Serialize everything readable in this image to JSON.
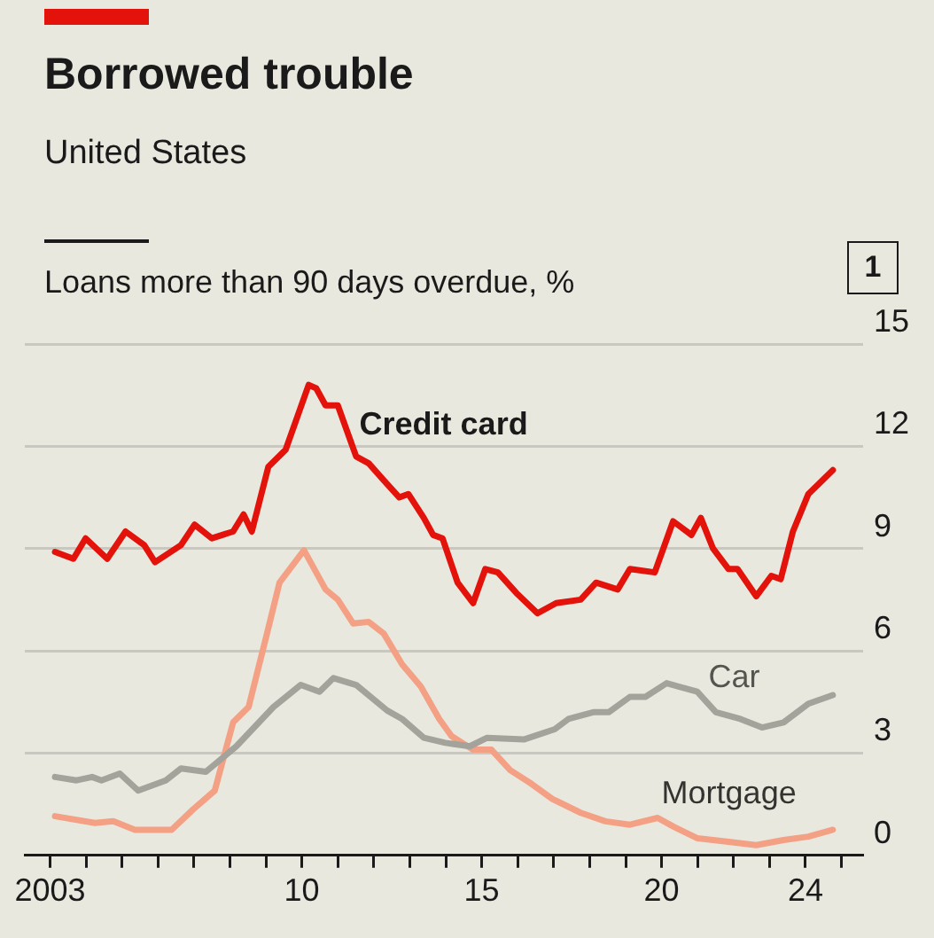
{
  "chart_data": {
    "type": "line",
    "title": "Borrowed trouble",
    "subtitle": "United States",
    "ylabel": "Loans more than 90 days overdue, %",
    "annotations": [
      "1"
    ],
    "xlim": [
      2002.3,
      2025.6
    ],
    "xticks": [
      {
        "value": 2003,
        "label": "2003"
      },
      {
        "value": 2004,
        "label": null
      },
      {
        "value": 2005,
        "label": null
      },
      {
        "value": 2006,
        "label": null
      },
      {
        "value": 2007,
        "label": null
      },
      {
        "value": 2008,
        "label": null
      },
      {
        "value": 2009,
        "label": null
      },
      {
        "value": 2010,
        "label": "10"
      },
      {
        "value": 2011,
        "label": null
      },
      {
        "value": 2012,
        "label": null
      },
      {
        "value": 2013,
        "label": null
      },
      {
        "value": 2014,
        "label": null
      },
      {
        "value": 2015,
        "label": "15"
      },
      {
        "value": 2016,
        "label": null
      },
      {
        "value": 2017,
        "label": null
      },
      {
        "value": 2018,
        "label": null
      },
      {
        "value": 2019,
        "label": null
      },
      {
        "value": 2020,
        "label": "20"
      },
      {
        "value": 2021,
        "label": null
      },
      {
        "value": 2022,
        "label": null
      },
      {
        "value": 2023,
        "label": null
      },
      {
        "value": 2024,
        "label": "24"
      },
      {
        "value": 2025,
        "label": null
      }
    ],
    "ylim": [
      0,
      15
    ],
    "yticks": [
      0,
      3,
      6,
      9,
      12,
      15
    ],
    "grid": "y",
    "legend": false,
    "marker": "none",
    "line_style": "solid",
    "series": [
      {
        "name": "Credit card",
        "color": "#e3120b",
        "x": [
          2003.14,
          2003.65,
          2003.99,
          2004.59,
          2005.1,
          2005.62,
          2005.92,
          2006.64,
          2007.02,
          2007.5,
          2008.09,
          2008.38,
          2008.61,
          2009.07,
          2009.55,
          2010.19,
          2010.4,
          2010.66,
          2011.0,
          2011.51,
          2011.86,
          2012.28,
          2012.71,
          2012.96,
          2013.39,
          2013.65,
          2013.91,
          2014.33,
          2014.76,
          2015.1,
          2015.45,
          2015.96,
          2016.55,
          2017.07,
          2017.75,
          2018.18,
          2018.78,
          2019.12,
          2019.81,
          2020.32,
          2020.83,
          2021.09,
          2021.43,
          2021.86,
          2022.11,
          2022.63,
          2023.05,
          2023.31,
          2023.65,
          2024.08,
          2024.76
        ],
        "values": [
          8.9,
          8.7,
          9.3,
          8.7,
          9.5,
          9.1,
          8.6,
          9.1,
          9.7,
          9.3,
          9.5,
          10.0,
          9.5,
          11.4,
          11.9,
          13.8,
          13.7,
          13.2,
          13.2,
          11.7,
          11.5,
          11.0,
          10.5,
          10.6,
          9.9,
          9.4,
          9.3,
          8.0,
          7.4,
          8.4,
          8.3,
          7.7,
          7.1,
          7.4,
          7.5,
          8.0,
          7.8,
          8.4,
          8.3,
          9.8,
          9.4,
          9.9,
          9.0,
          8.4,
          8.4,
          7.6,
          8.2,
          8.1,
          9.5,
          10.6,
          11.3
        ]
      },
      {
        "name": "Car",
        "color": "#a3a39b",
        "x": [
          2003.14,
          2003.74,
          2004.17,
          2004.43,
          2004.94,
          2005.45,
          2006.22,
          2006.64,
          2007.33,
          2008.18,
          2009.21,
          2009.97,
          2010.49,
          2010.88,
          2011.51,
          2012.37,
          2012.79,
          2013.39,
          2013.99,
          2014.67,
          2015.15,
          2016.17,
          2017.03,
          2017.41,
          2018.1,
          2018.53,
          2019.12,
          2019.55,
          2020.14,
          2020.99,
          2021.51,
          2022.19,
          2022.79,
          2023.39,
          2024.08,
          2024.76
        ],
        "values": [
          2.3,
          2.2,
          2.3,
          2.2,
          2.4,
          1.9,
          2.2,
          2.55,
          2.45,
          3.2,
          4.35,
          5.0,
          4.8,
          5.2,
          5.0,
          4.25,
          4.0,
          3.45,
          3.3,
          3.2,
          3.45,
          3.4,
          3.7,
          4.0,
          4.2,
          4.2,
          4.65,
          4.65,
          5.05,
          4.8,
          4.2,
          4.0,
          3.75,
          3.9,
          4.45,
          4.7
        ]
      },
      {
        "name": "Mortgage",
        "color": "#f4a084",
        "x": [
          2003.14,
          2004.25,
          2004.76,
          2005.36,
          2006.38,
          2006.98,
          2007.58,
          2008.09,
          2008.52,
          2009.03,
          2009.38,
          2010.06,
          2010.66,
          2011.0,
          2011.43,
          2011.86,
          2012.28,
          2012.79,
          2013.31,
          2013.82,
          2014.16,
          2014.76,
          2015.27,
          2015.79,
          2016.38,
          2016.97,
          2017.07,
          2017.75,
          2018.44,
          2019.12,
          2019.89,
          2020.32,
          2021.0,
          2021.86,
          2022.63,
          2023.39,
          2024.08,
          2024.76
        ],
        "values": [
          1.15,
          0.95,
          1.0,
          0.75,
          0.75,
          1.35,
          1.9,
          3.9,
          4.35,
          6.5,
          8.0,
          8.95,
          7.8,
          7.5,
          6.8,
          6.85,
          6.5,
          5.6,
          4.95,
          4.0,
          3.5,
          3.1,
          3.1,
          2.5,
          2.1,
          1.65,
          1.6,
          1.25,
          1.0,
          0.9,
          1.1,
          0.85,
          0.5,
          0.4,
          0.3,
          0.45,
          0.55,
          0.75
        ]
      }
    ]
  }
}
